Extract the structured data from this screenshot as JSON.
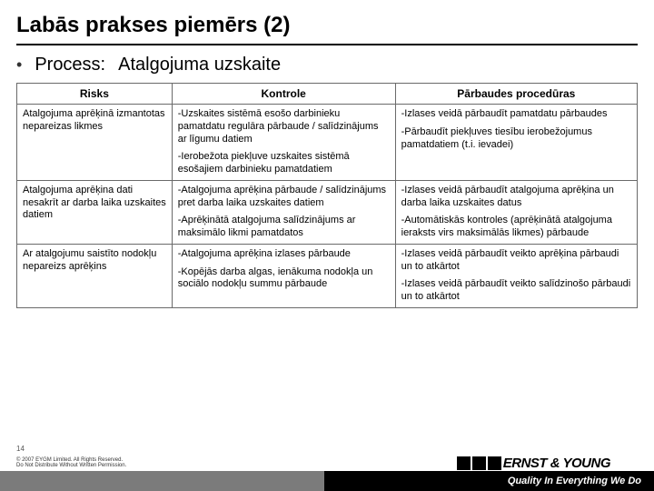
{
  "title": "Labās prakses piemērs (2)",
  "process_label": "Process:",
  "process_value": "Atalgojuma uzskaite",
  "columns": [
    "Risks",
    "Kontrole",
    "Pārbaudes procedūras"
  ],
  "rows": [
    {
      "risk": "Atalgojuma aprēķinā izmantotas nepareizas likmes",
      "control": [
        "-Uzskaites sistēmā esošo darbinieku pamatdatu regulāra pārbaude / salīdzinājums ar līgumu datiem",
        "-Ierobežota piekļuve uzskaites sistēmā esošajiem darbinieku pamatdatiem"
      ],
      "procedure": [
        "-Izlases veidā pārbaudīt pamatdatu pārbaudes",
        "-Pārbaudīt piekļuves tiesību ierobežojumus pamatdatiem (t.i. ievadei)"
      ]
    },
    {
      "risk": "Atalgojuma aprēķina dati nesakrīt ar darba laika uzskaites datiem",
      "control": [
        "-Atalgojuma aprēķina pārbaude / salīdzinājums pret darba laika uzskaites datiem",
        "-Aprēķinātā atalgojuma salīdzinājums ar maksimālo likmi pamatdatos"
      ],
      "procedure": [
        "-Izlases veidā pārbaudīt atalgojuma aprēķina un darba laika uzskaites datus",
        "-Automātiskās kontroles (aprēķinātā atalgojuma ieraksts virs maksimālās likmes) pārbaude"
      ]
    },
    {
      "risk": "Ar atalgojumu saistīto nodokļu nepareizs aprēķins",
      "control": [
        "-Atalgojuma aprēķina izlases pārbaude",
        "-Kopējās darba algas, ienākuma nodokļa un sociālo nodokļu summu pārbaude"
      ],
      "procedure": [
        "-Izlases veidā pārbaudīt veikto aprēķina pārbaudi un to atkārtot",
        "-Izlases veidā pārbaudīt veikto salīdzinošo pārbaudi un to atkārtot"
      ]
    }
  ],
  "page_num": "14",
  "copyright1": "© 2007 EYGM Limited. All Rights Reserved.",
  "copyright2": "Do Not Distribute Without Written Permission.",
  "logo_text": "ERNST & YOUNG",
  "tagline": "Quality In Everything We Do",
  "colors": {
    "border": "#6a6a6a",
    "footer_gray": "#7b7b7b",
    "footer_black": "#000000"
  }
}
